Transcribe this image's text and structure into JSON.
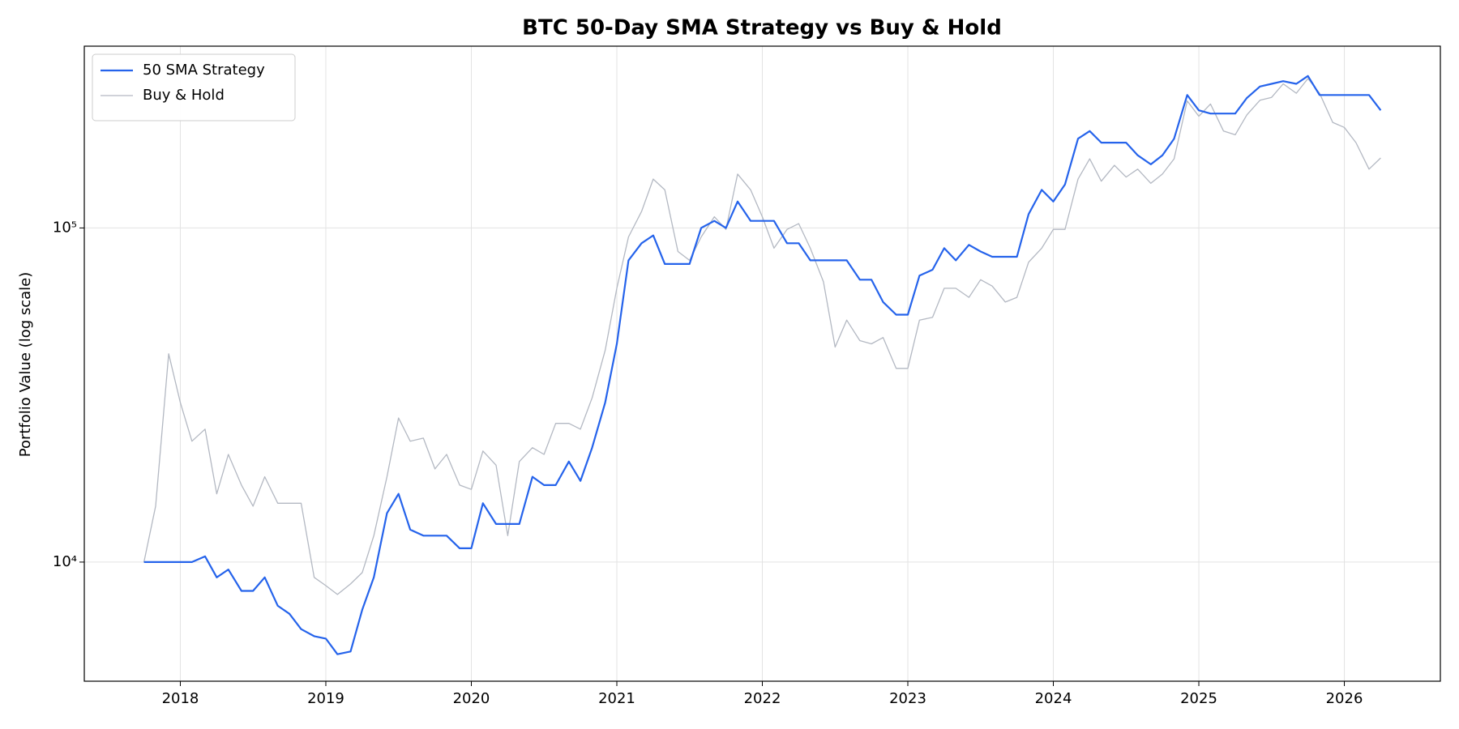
{
  "chart_data": {
    "type": "line",
    "title": "BTC 50-Day SMA Strategy vs Buy & Hold",
    "ylabel": "Portfolio Value (log scale)",
    "log_y": true,
    "grid": true,
    "legend": "upper left",
    "xlim": [
      2017.34,
      2026.66
    ],
    "xticks": [
      2018,
      2019,
      2020,
      2021,
      2022,
      2023,
      2024,
      2025,
      2026
    ],
    "ylim": [
      4400,
      350000
    ],
    "yticks": [
      {
        "value": 10000,
        "label": "10⁴"
      },
      {
        "value": 100000,
        "label": "10⁵"
      }
    ],
    "x": [
      2017.75,
      2017.83,
      2017.92,
      2018.0,
      2018.08,
      2018.17,
      2018.25,
      2018.33,
      2018.42,
      2018.5,
      2018.58,
      2018.67,
      2018.75,
      2018.83,
      2018.92,
      2019.0,
      2019.08,
      2019.17,
      2019.25,
      2019.33,
      2019.42,
      2019.5,
      2019.58,
      2019.67,
      2019.75,
      2019.83,
      2019.92,
      2020.0,
      2020.08,
      2020.17,
      2020.25,
      2020.33,
      2020.42,
      2020.5,
      2020.58,
      2020.67,
      2020.75,
      2020.83,
      2020.92,
      2021.0,
      2021.08,
      2021.17,
      2021.25,
      2021.33,
      2021.42,
      2021.5,
      2021.58,
      2021.67,
      2021.75,
      2021.83,
      2021.92,
      2022.0,
      2022.08,
      2022.17,
      2022.25,
      2022.33,
      2022.42,
      2022.5,
      2022.58,
      2022.67,
      2022.75,
      2022.83,
      2022.92,
      2023.0,
      2023.08,
      2023.17,
      2023.25,
      2023.33,
      2023.42,
      2023.5,
      2023.58,
      2023.67,
      2023.75,
      2023.83,
      2023.92,
      2024.0,
      2024.08,
      2024.17,
      2024.25,
      2024.33,
      2024.42,
      2024.5,
      2024.58,
      2024.67,
      2024.75,
      2024.83,
      2024.92,
      2025.0,
      2025.08,
      2025.17,
      2025.25,
      2025.33,
      2025.42,
      2025.5,
      2025.58,
      2025.67,
      2025.75,
      2025.83,
      2025.92,
      2026.0,
      2026.08,
      2026.17,
      2026.25
    ],
    "series": [
      {
        "name": "Buy & Hold",
        "color": "#b3b8c2",
        "width": 1.3,
        "values": [
          10000,
          14700,
          42000,
          30000,
          23000,
          25000,
          16000,
          21000,
          17000,
          14700,
          18000,
          15000,
          15000,
          15000,
          9000,
          8500,
          8000,
          8600,
          9300,
          12000,
          18000,
          27000,
          23000,
          23500,
          19000,
          21000,
          17000,
          16500,
          21500,
          19500,
          12000,
          20000,
          22000,
          21000,
          26000,
          26000,
          25000,
          31000,
          43000,
          66000,
          94000,
          112000,
          140000,
          130000,
          85000,
          80000,
          94000,
          108000,
          99000,
          145000,
          130000,
          108000,
          87000,
          99000,
          103000,
          87000,
          69000,
          44000,
          53000,
          46000,
          45000,
          47000,
          38000,
          38000,
          53000,
          54000,
          66000,
          66000,
          62000,
          70000,
          67000,
          60000,
          62000,
          79000,
          87000,
          99000,
          99000,
          140000,
          161000,
          138000,
          154000,
          142000,
          150000,
          136000,
          145000,
          161000,
          240000,
          216000,
          235000,
          195000,
          190000,
          218000,
          241000,
          246000,
          270000,
          253000,
          280000,
          253000,
          207000,
          200000,
          180000,
          150000,
          162000
        ]
      },
      {
        "name": "50 SMA Strategy",
        "color": "#2563eb",
        "width": 2.2,
        "values": [
          10000,
          10000,
          10000,
          10000,
          10000,
          10400,
          9000,
          9500,
          8200,
          8200,
          9000,
          7400,
          7000,
          6300,
          6000,
          5900,
          5300,
          5400,
          7200,
          9000,
          14000,
          16000,
          12500,
          12000,
          12000,
          12000,
          11000,
          11000,
          15000,
          13000,
          13000,
          13000,
          18000,
          17000,
          17000,
          20000,
          17500,
          22000,
          30000,
          45000,
          80000,
          90000,
          95000,
          78000,
          78000,
          78000,
          100000,
          105000,
          100000,
          120000,
          105000,
          105000,
          105000,
          90000,
          90000,
          80000,
          80000,
          80000,
          80000,
          70000,
          70000,
          60000,
          55000,
          55000,
          72000,
          75000,
          87000,
          80000,
          89000,
          85000,
          82000,
          82000,
          82000,
          110000,
          130000,
          120000,
          135000,
          185000,
          195000,
          180000,
          180000,
          180000,
          165000,
          155000,
          165000,
          185000,
          250000,
          225000,
          220000,
          220000,
          220000,
          245000,
          265000,
          270000,
          275000,
          270000,
          285000,
          250000,
          250000,
          250000,
          250000,
          250000,
          225000
        ]
      }
    ]
  }
}
